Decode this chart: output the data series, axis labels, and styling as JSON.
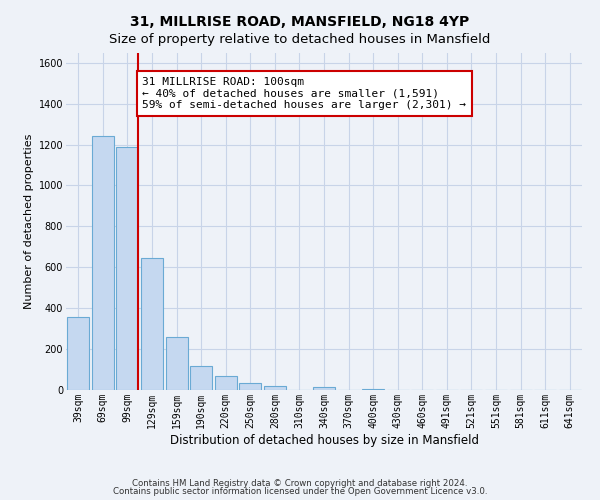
{
  "title": "31, MILLRISE ROAD, MANSFIELD, NG18 4YP",
  "subtitle": "Size of property relative to detached houses in Mansfield",
  "xlabel": "Distribution of detached houses by size in Mansfield",
  "ylabel": "Number of detached properties",
  "bar_labels": [
    "39sqm",
    "69sqm",
    "99sqm",
    "129sqm",
    "159sqm",
    "190sqm",
    "220sqm",
    "250sqm",
    "280sqm",
    "310sqm",
    "340sqm",
    "370sqm",
    "400sqm",
    "430sqm",
    "460sqm",
    "491sqm",
    "521sqm",
    "551sqm",
    "581sqm",
    "611sqm",
    "641sqm"
  ],
  "bar_heights": [
    355,
    1240,
    1190,
    645,
    260,
    115,
    70,
    35,
    20,
    0,
    15,
    0,
    5,
    0,
    0,
    0,
    0,
    0,
    0,
    0,
    0
  ],
  "bar_color": "#c5d8f0",
  "bar_edge_color": "#6aaad4",
  "grid_color": "#c8d4e8",
  "background_color": "#eef2f8",
  "vline_color": "#cc0000",
  "annotation_text": "31 MILLRISE ROAD: 100sqm\n← 40% of detached houses are smaller (1,591)\n59% of semi-detached houses are larger (2,301) →",
  "annotation_box_facecolor": "#ffffff",
  "annotation_border_color": "#cc0000",
  "footnote1": "Contains HM Land Registry data © Crown copyright and database right 2024.",
  "footnote2": "Contains public sector information licensed under the Open Government Licence v3.0.",
  "ylim": [
    0,
    1650
  ],
  "title_fontsize": 10,
  "subtitle_fontsize": 9.5,
  "xlabel_fontsize": 8.5,
  "ylabel_fontsize": 8,
  "tick_fontsize": 7,
  "annotation_fontsize": 8,
  "footnote_fontsize": 6.2
}
